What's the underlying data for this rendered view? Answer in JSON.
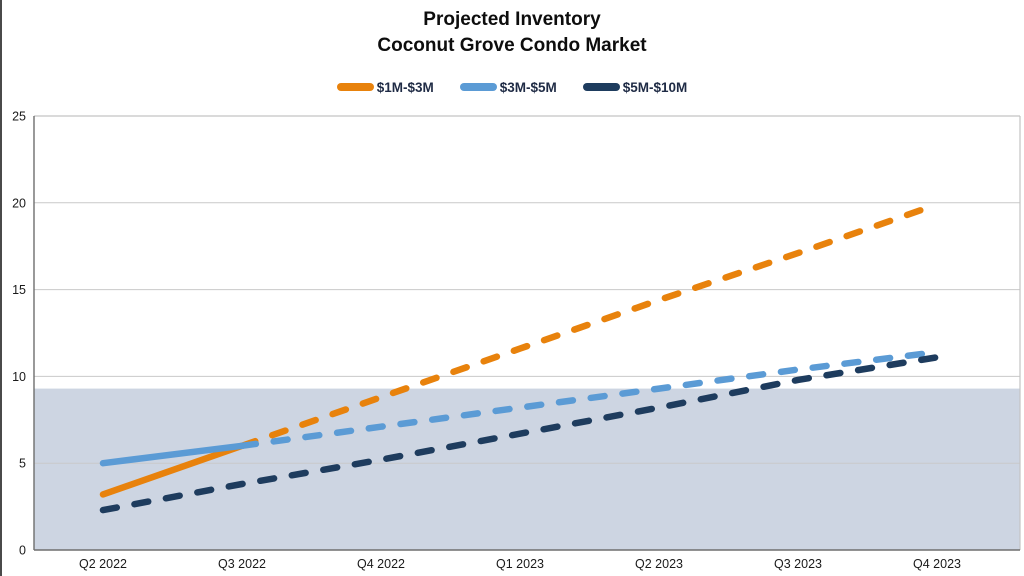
{
  "chart_data": {
    "type": "line",
    "title": "Projected Inventory",
    "subtitle": "Coconut Grove Condo Market",
    "categories": [
      "Q2 2022",
      "Q3 2022",
      "Q4 2022",
      "Q1 2023",
      "Q2 2023",
      "Q3 2023",
      "Q4 2023"
    ],
    "series": [
      {
        "name": "$1M-$3M",
        "color": "#E8820C",
        "style": "solid-then-dashed",
        "solid_through_index": 1,
        "values": [
          3.2,
          6.0,
          8.8,
          11.6,
          14.4,
          17.1,
          19.9
        ]
      },
      {
        "name": "$3M-$5M",
        "color": "#5B9BD5",
        "style": "solid-then-dashed",
        "solid_through_index": 1,
        "values": [
          5.0,
          6.0,
          7.1,
          8.2,
          9.3,
          10.4,
          11.4
        ]
      },
      {
        "name": "$5M-$10M",
        "color": "#1E3C5E",
        "style": "dashed",
        "solid_through_index": 0,
        "values": [
          2.3,
          3.8,
          5.2,
          6.7,
          8.2,
          9.8,
          11.1
        ]
      }
    ],
    "xlabel": "",
    "ylabel": "",
    "ylim": [
      0,
      25
    ],
    "yticks": [
      0,
      5,
      10,
      15,
      20,
      25
    ],
    "band": {
      "from": 0,
      "to": 9.3,
      "color": "#CDD5E2"
    },
    "grid": true,
    "legend_position": "top"
  },
  "theme": {
    "grid_color": "#C9C9C9",
    "axis_color": "#6E6E6E",
    "border_color": "#C3C3C3",
    "tick_text_color": "#1A1A1A",
    "title_color": "#0D0D0D",
    "legend_text_color": "#1F2B45",
    "edge_line_color": "#4A4A4A"
  }
}
